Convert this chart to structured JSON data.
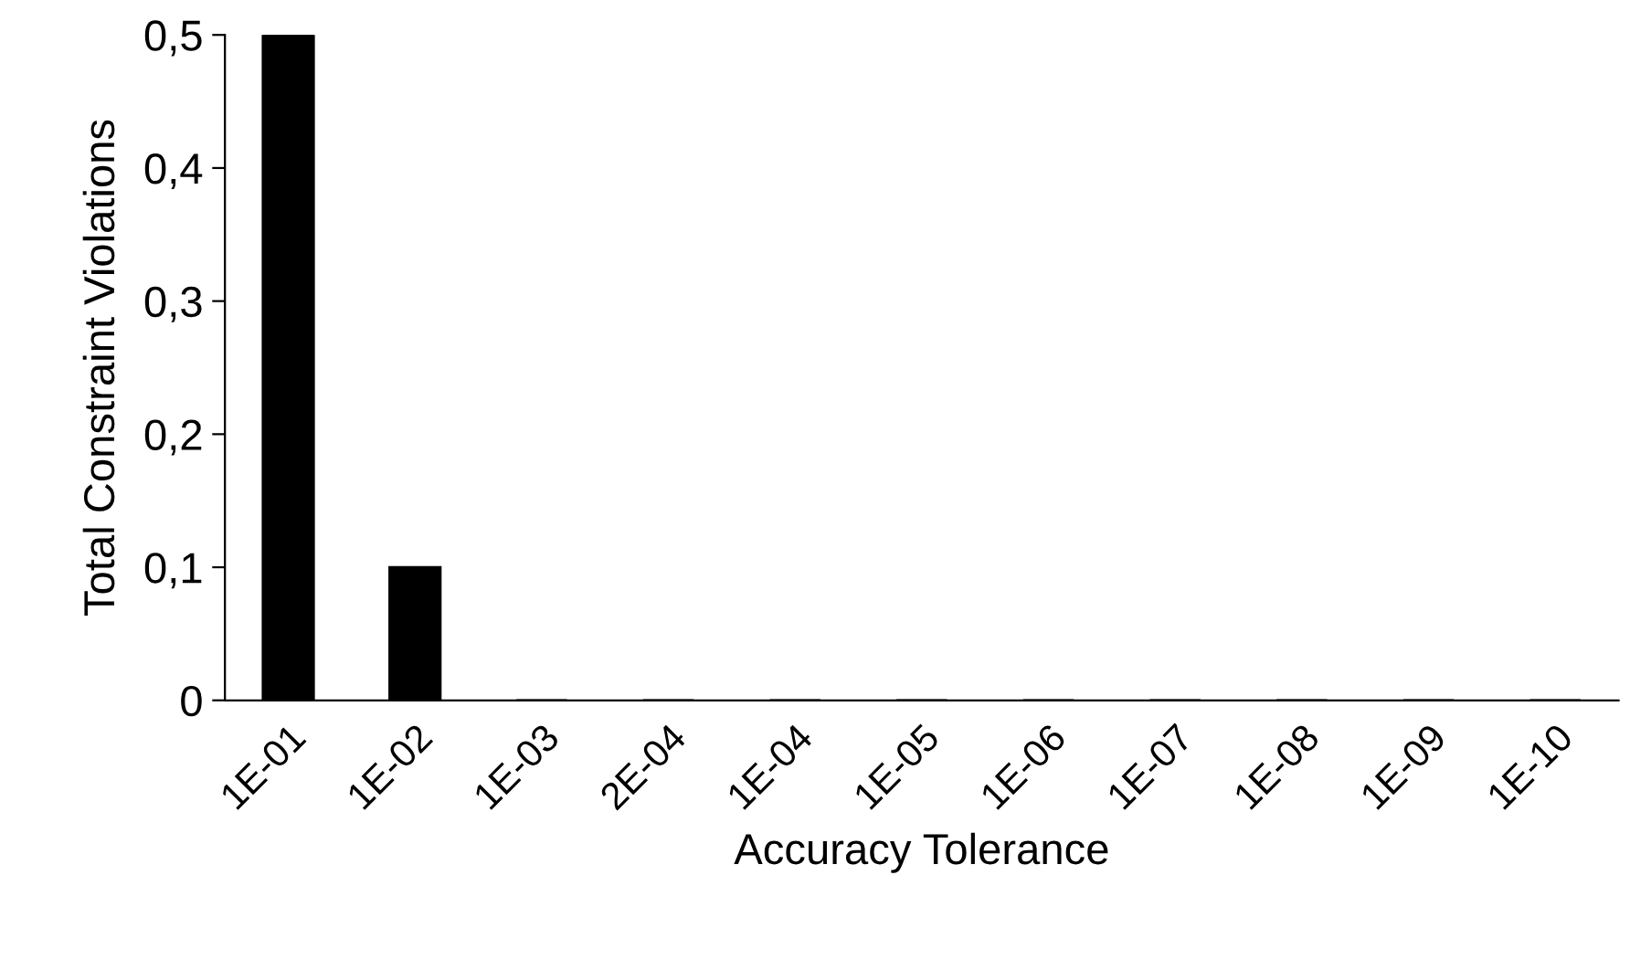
{
  "chart_data": {
    "type": "bar",
    "xlabel": "Accuracy Tolerance",
    "ylabel": "Total Constraint Violations",
    "categories": [
      "1E-01",
      "1E-02",
      "1E-03",
      "2E-04",
      "1E-04",
      "1E-05",
      "1E-06",
      "1E-07",
      "1E-08",
      "1E-09",
      "1E-10"
    ],
    "values": [
      0.5,
      0.1,
      0,
      0,
      0,
      0,
      0,
      0,
      0,
      0,
      0
    ],
    "color": "#000000",
    "ylim": [
      0,
      0.5
    ],
    "yticks": [
      0,
      {
        "value": 0.1,
        "label": "0,1"
      },
      {
        "value": 0.2,
        "label": "0,2"
      },
      {
        "value": 0.3,
        "label": "0,3"
      },
      {
        "value": 0.4,
        "label": "0,4"
      },
      {
        "value": 0.5,
        "label": "0,5"
      }
    ],
    "grid": false,
    "legend": false
  }
}
